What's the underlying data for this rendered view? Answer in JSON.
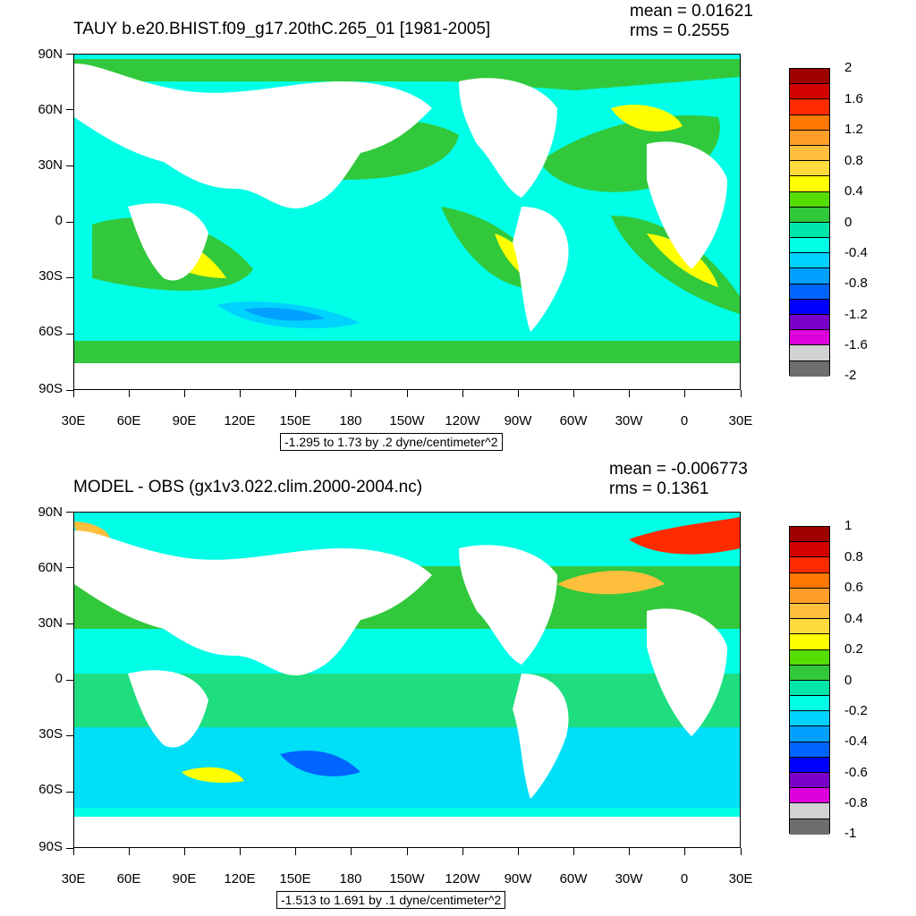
{
  "panels": [
    {
      "title": "TAUY b.e20.BHIST.f09_g17.20thC.265_01 [1981-2005]",
      "mean": "mean = 0.01621",
      "rms": "rms = 0.2555",
      "info": "-1.295 to 1.73 by .2 dyne/centimeter^2",
      "lat_ticks": [
        "90N",
        "60N",
        "30N",
        "0",
        "30S",
        "60S",
        "90S"
      ],
      "lon_ticks": [
        "30E",
        "60E",
        "90E",
        "120E",
        "150E",
        "180",
        "150W",
        "120W",
        "90W",
        "60W",
        "30W",
        "0",
        "30E"
      ],
      "colorbar": {
        "labels": [
          "2",
          "1.6",
          "1.2",
          "0.8",
          "0.4",
          "0",
          "-0.4",
          "-0.8",
          "-1.2",
          "-1.6",
          "-2"
        ],
        "colors": [
          "#9e0000",
          "#d30000",
          "#ff2a00",
          "#ff7800",
          "#ff9e28",
          "#ffbe3c",
          "#ffdc3c",
          "#ffff00",
          "#55dc00",
          "#32c83c",
          "#00e6aa",
          "#00ffe6",
          "#00d2ff",
          "#00a0ff",
          "#0064ff",
          "#0000ff",
          "#7800c8",
          "#dc00dc",
          "#d2d2d2",
          "#6e6e6e"
        ]
      }
    },
    {
      "title": "MODEL - OBS (gx1v3.022.clim.2000-2004.nc)",
      "mean": "mean = -0.006773",
      "rms": "rms = 0.1361",
      "info": "-1.513 to 1.691 by .1 dyne/centimeter^2",
      "lat_ticks": [
        "90N",
        "60N",
        "30N",
        "0",
        "30S",
        "60S",
        "90S"
      ],
      "lon_ticks": [
        "30E",
        "60E",
        "90E",
        "120E",
        "150E",
        "180",
        "150W",
        "120W",
        "90W",
        "60W",
        "30W",
        "0",
        "30E"
      ],
      "colorbar": {
        "labels": [
          "1",
          "0.8",
          "0.6",
          "0.4",
          "0.2",
          "0",
          "-0.2",
          "-0.4",
          "-0.6",
          "-0.8",
          "-1"
        ],
        "colors": [
          "#9e0000",
          "#d30000",
          "#ff2a00",
          "#ff7800",
          "#ff9e28",
          "#ffbe3c",
          "#ffdc3c",
          "#ffff00",
          "#55dc00",
          "#32c83c",
          "#00e6aa",
          "#00ffe6",
          "#00d2ff",
          "#00a0ff",
          "#0064ff",
          "#0000ff",
          "#7800c8",
          "#dc00dc",
          "#d2d2d2",
          "#6e6e6e"
        ]
      }
    }
  ],
  "chart_data": [
    {
      "type": "heatmap",
      "title": "TAUY b.e20.BHIST.f09_g17.20thC.265_01 [1981-2005]",
      "xlabel": "",
      "ylabel": "",
      "xlim": [
        "30E",
        "30E"
      ],
      "ylim": [
        "90S",
        "90N"
      ],
      "mean": 0.01621,
      "rms": 0.2555,
      "contour_min": -1.295,
      "contour_max": 1.73,
      "contour_interval": 0.2,
      "units": "dyne/centimeter^2",
      "colorbar_levels": [
        2,
        1.6,
        1.2,
        0.8,
        0.4,
        0,
        -0.4,
        -0.8,
        -1.2,
        -1.6,
        -2
      ]
    },
    {
      "type": "heatmap",
      "title": "MODEL - OBS (gx1v3.022.clim.2000-2004.nc)",
      "xlabel": "",
      "ylabel": "",
      "xlim": [
        "30E",
        "30E"
      ],
      "ylim": [
        "90S",
        "90N"
      ],
      "mean": -0.006773,
      "rms": 0.1361,
      "contour_min": -1.513,
      "contour_max": 1.691,
      "contour_interval": 0.1,
      "units": "dyne/centimeter^2",
      "colorbar_levels": [
        1,
        0.8,
        0.6,
        0.4,
        0.2,
        0,
        -0.2,
        -0.4,
        -0.6,
        -0.8,
        -1
      ]
    }
  ]
}
